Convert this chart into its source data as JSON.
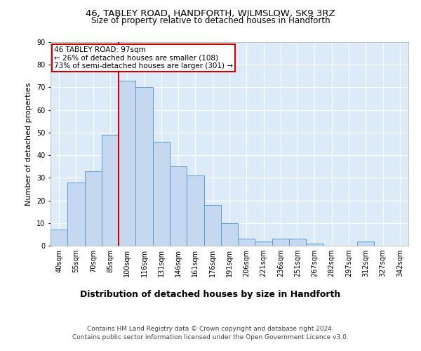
{
  "title1": "46, TABLEY ROAD, HANDFORTH, WILMSLOW, SK9 3RZ",
  "title2": "Size of property relative to detached houses in Handforth",
  "xlabel": "Distribution of detached houses by size in Handforth",
  "ylabel": "Number of detached properties",
  "categories": [
    "40sqm",
    "55sqm",
    "70sqm",
    "85sqm",
    "100sqm",
    "116sqm",
    "131sqm",
    "146sqm",
    "161sqm",
    "176sqm",
    "191sqm",
    "206sqm",
    "221sqm",
    "236sqm",
    "251sqm",
    "267sqm",
    "282sqm",
    "297sqm",
    "312sqm",
    "327sqm",
    "342sqm"
  ],
  "values": [
    7,
    28,
    33,
    49,
    73,
    70,
    46,
    35,
    31,
    18,
    10,
    3,
    2,
    3,
    3,
    1,
    0,
    0,
    2,
    0,
    0
  ],
  "bar_color": "#c5d8f0",
  "bar_edge_color": "#5b9bd5",
  "vline_x_index": 4,
  "vline_color": "#cc0000",
  "annotation_text": "46 TABLEY ROAD: 97sqm\n← 26% of detached houses are smaller (108)\n73% of semi-detached houses are larger (301) →",
  "annotation_box_color": "white",
  "annotation_box_edge": "#cc0000",
  "ylim": [
    0,
    90
  ],
  "yticks": [
    0,
    10,
    20,
    30,
    40,
    50,
    60,
    70,
    80,
    90
  ],
  "footer1": "Contains HM Land Registry data © Crown copyright and database right 2024.",
  "footer2": "Contains public sector information licensed under the Open Government Licence v3.0.",
  "bg_color": "#ddeaf8",
  "fig_bg_color": "#ffffff",
  "title1_fontsize": 9.5,
  "title2_fontsize": 8.5,
  "ylabel_fontsize": 8,
  "xlabel_fontsize": 9,
  "tick_fontsize": 7,
  "footer_fontsize": 6.5,
  "ann_fontsize": 7.5
}
